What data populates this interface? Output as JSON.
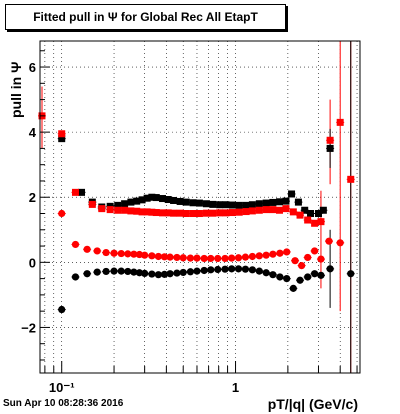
{
  "title": "Fitted pull in Ψ  for Global Rec All EtapT",
  "footer": "Sun Apr 10 08:28:36 2016",
  "chart_data": {
    "type": "scatter",
    "title": "Fitted pull in Ψ  for Global Rec All EtapT",
    "xlabel": "pT/|q| (GeV/c)",
    "ylabel": "pull in Ψ",
    "xscale": "log",
    "xlim": [
      0.075,
      5.2
    ],
    "ylim": [
      -3.4,
      6.8
    ],
    "x_ticks": [
      0.1,
      1
    ],
    "x_tick_labels": [
      "10⁻¹",
      "1"
    ],
    "y_ticks": [
      -2,
      0,
      2,
      4,
      6
    ],
    "y_tick_labels": [
      "−2",
      "0",
      "2",
      "4",
      "6"
    ],
    "grid": true,
    "series": [
      {
        "color": "#000000",
        "marker": "square",
        "points": [
          [
            0.1,
            3.8
          ],
          [
            0.13,
            2.15
          ],
          [
            0.15,
            1.85
          ],
          [
            0.17,
            1.7
          ],
          [
            0.19,
            1.72
          ],
          [
            0.21,
            1.75
          ],
          [
            0.23,
            1.8
          ],
          [
            0.25,
            1.85
          ],
          [
            0.27,
            1.88
          ],
          [
            0.29,
            1.92
          ],
          [
            0.31,
            1.97
          ],
          [
            0.33,
            2.0
          ],
          [
            0.35,
            1.99
          ],
          [
            0.38,
            1.96
          ],
          [
            0.41,
            1.93
          ],
          [
            0.44,
            1.9
          ],
          [
            0.48,
            1.87
          ],
          [
            0.52,
            1.85
          ],
          [
            0.57,
            1.83
          ],
          [
            0.62,
            1.82
          ],
          [
            0.68,
            1.8
          ],
          [
            0.74,
            1.78
          ],
          [
            0.81,
            1.77
          ],
          [
            0.88,
            1.77
          ],
          [
            0.96,
            1.76
          ],
          [
            1.05,
            1.75
          ],
          [
            1.15,
            1.75
          ],
          [
            1.25,
            1.77
          ],
          [
            1.37,
            1.8
          ],
          [
            1.5,
            1.82
          ],
          [
            1.64,
            1.84
          ],
          [
            1.79,
            1.86
          ],
          [
            1.95,
            1.88
          ],
          [
            2.1,
            2.1
          ],
          [
            2.3,
            1.85
          ],
          [
            2.5,
            1.6
          ],
          [
            2.7,
            1.5
          ],
          [
            3.0,
            1.5
          ],
          [
            3.2,
            1.6
          ],
          [
            3.5,
            3.5
          ]
        ]
      },
      {
        "color": "#ff0000",
        "marker": "square",
        "points": [
          [
            0.077,
            4.5
          ],
          [
            0.1,
            3.95
          ],
          [
            0.12,
            2.15
          ],
          [
            0.15,
            1.78
          ],
          [
            0.17,
            1.65
          ],
          [
            0.19,
            1.62
          ],
          [
            0.21,
            1.6
          ],
          [
            0.23,
            1.6
          ],
          [
            0.25,
            1.58
          ],
          [
            0.27,
            1.57
          ],
          [
            0.29,
            1.55
          ],
          [
            0.31,
            1.55
          ],
          [
            0.33,
            1.54
          ],
          [
            0.35,
            1.53
          ],
          [
            0.38,
            1.52
          ],
          [
            0.41,
            1.52
          ],
          [
            0.44,
            1.51
          ],
          [
            0.48,
            1.51
          ],
          [
            0.52,
            1.5
          ],
          [
            0.57,
            1.5
          ],
          [
            0.62,
            1.5
          ],
          [
            0.68,
            1.51
          ],
          [
            0.74,
            1.51
          ],
          [
            0.81,
            1.52
          ],
          [
            0.88,
            1.52
          ],
          [
            0.96,
            1.53
          ],
          [
            1.05,
            1.54
          ],
          [
            1.15,
            1.56
          ],
          [
            1.25,
            1.58
          ],
          [
            1.37,
            1.6
          ],
          [
            1.5,
            1.62
          ],
          [
            1.64,
            1.62
          ],
          [
            1.79,
            1.6
          ],
          [
            1.95,
            1.65
          ],
          [
            2.15,
            1.55
          ],
          [
            2.35,
            1.45
          ],
          [
            2.6,
            1.3
          ],
          [
            2.85,
            1.2
          ],
          [
            3.1,
            1.25
          ],
          [
            3.5,
            3.75
          ],
          [
            4.0,
            4.3
          ],
          [
            4.6,
            2.55
          ]
        ]
      },
      {
        "color": "#ff0000",
        "marker": "circle",
        "points": [
          [
            0.1,
            1.5
          ],
          [
            0.12,
            0.55
          ],
          [
            0.14,
            0.4
          ],
          [
            0.16,
            0.35
          ],
          [
            0.18,
            0.3
          ],
          [
            0.2,
            0.28
          ],
          [
            0.22,
            0.27
          ],
          [
            0.24,
            0.26
          ],
          [
            0.26,
            0.25
          ],
          [
            0.28,
            0.24
          ],
          [
            0.3,
            0.22
          ],
          [
            0.33,
            0.2
          ],
          [
            0.36,
            0.18
          ],
          [
            0.39,
            0.17
          ],
          [
            0.42,
            0.16
          ],
          [
            0.46,
            0.15
          ],
          [
            0.5,
            0.14
          ],
          [
            0.55,
            0.13
          ],
          [
            0.6,
            0.13
          ],
          [
            0.66,
            0.12
          ],
          [
            0.72,
            0.12
          ],
          [
            0.79,
            0.12
          ],
          [
            0.87,
            0.12
          ],
          [
            0.95,
            0.13
          ],
          [
            1.04,
            0.14
          ],
          [
            1.14,
            0.16
          ],
          [
            1.25,
            0.18
          ],
          [
            1.37,
            0.2
          ],
          [
            1.5,
            0.22
          ],
          [
            1.64,
            0.25
          ],
          [
            1.8,
            0.28
          ],
          [
            1.97,
            0.32
          ],
          [
            2.2,
            0.05
          ],
          [
            2.4,
            -0.1
          ],
          [
            2.6,
            0.15
          ],
          [
            2.85,
            0.35
          ],
          [
            3.1,
            0.1
          ],
          [
            3.45,
            0.65
          ],
          [
            4.0,
            0.6
          ]
        ]
      },
      {
        "color": "#000000",
        "marker": "circle",
        "points": [
          [
            0.1,
            -1.45
          ],
          [
            0.12,
            -0.45
          ],
          [
            0.14,
            -0.35
          ],
          [
            0.16,
            -0.3
          ],
          [
            0.18,
            -0.28
          ],
          [
            0.2,
            -0.27
          ],
          [
            0.22,
            -0.27
          ],
          [
            0.24,
            -0.28
          ],
          [
            0.26,
            -0.3
          ],
          [
            0.28,
            -0.32
          ],
          [
            0.3,
            -0.34
          ],
          [
            0.33,
            -0.36
          ],
          [
            0.36,
            -0.38
          ],
          [
            0.39,
            -0.37
          ],
          [
            0.42,
            -0.35
          ],
          [
            0.46,
            -0.33
          ],
          [
            0.5,
            -0.31
          ],
          [
            0.55,
            -0.29
          ],
          [
            0.6,
            -0.27
          ],
          [
            0.66,
            -0.25
          ],
          [
            0.72,
            -0.23
          ],
          [
            0.79,
            -0.22
          ],
          [
            0.87,
            -0.21
          ],
          [
            0.95,
            -0.2
          ],
          [
            1.04,
            -0.2
          ],
          [
            1.14,
            -0.21
          ],
          [
            1.25,
            -0.23
          ],
          [
            1.37,
            -0.27
          ],
          [
            1.5,
            -0.32
          ],
          [
            1.64,
            -0.38
          ],
          [
            1.8,
            -0.45
          ],
          [
            1.97,
            -0.5
          ],
          [
            2.15,
            -0.8
          ],
          [
            2.35,
            -0.55
          ],
          [
            2.6,
            -0.45
          ],
          [
            2.85,
            -0.35
          ],
          [
            3.1,
            -0.4
          ],
          [
            3.5,
            -0.2
          ],
          [
            4.6,
            -0.35
          ]
        ]
      }
    ],
    "error_bars": [
      {
        "x": 0.077,
        "ylo": 3.5,
        "yhi": 5.4,
        "color": "#ff0000"
      },
      {
        "x": 3.5,
        "ylo": 2.4,
        "yhi": 5.0,
        "color": "#ff0000"
      },
      {
        "x": 4.0,
        "ylo": -1.5,
        "yhi": 6.8,
        "color": "#ff0000"
      },
      {
        "x": 4.6,
        "ylo": -3.4,
        "yhi": 6.8,
        "color": "#ff0000"
      },
      {
        "x": 4.6,
        "ylo": -3.4,
        "yhi": 6.8,
        "color": "#000000"
      },
      {
        "x": 3.5,
        "ylo": -1.4,
        "yhi": 1.0,
        "color": "#000000"
      },
      {
        "x": 3.5,
        "ylo": 2.9,
        "yhi": 4.1,
        "color": "#000000"
      },
      {
        "x": 3.1,
        "ylo": -0.8,
        "yhi": 2.2,
        "color": "#ff0000"
      }
    ]
  }
}
